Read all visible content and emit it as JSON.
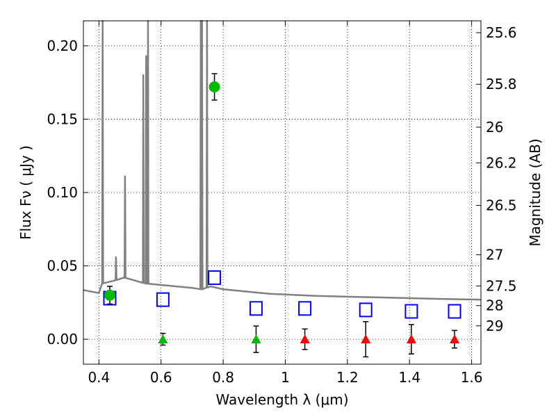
{
  "chart_data": {
    "type": "scatter",
    "xlabel": "Wavelength  λ (μm)",
    "ylabel": "Flux  Fν  ( μJy )",
    "ylabel_right": "Magnitude (AB)",
    "xlim": [
      0.35,
      1.63
    ],
    "ylim": [
      -0.017,
      0.217
    ],
    "grid": true,
    "x_ticks": [
      0.4,
      0.6,
      0.8,
      1.0,
      1.2,
      1.4,
      1.6
    ],
    "x_tick_labels": [
      "0.4",
      "0.6",
      "0.8",
      "1",
      "1.2",
      "1.4",
      "1.6"
    ],
    "y_ticks": [
      0.0,
      0.05,
      0.1,
      0.15,
      0.2
    ],
    "y_tick_labels": [
      "0.00",
      "0.05",
      "0.10",
      "0.15",
      "0.20"
    ],
    "mag_ticks": [
      25.6,
      25.8,
      26,
      26.2,
      26.5,
      27,
      27.5,
      28,
      29
    ],
    "mag_tick_labels": [
      "25.6",
      "25.8",
      "26",
      "26.2",
      "26.5",
      "27",
      "27.5",
      "28",
      "29"
    ],
    "model_spectrum": {
      "color": "#808080",
      "continuum": [
        [
          0.35,
          0.0335
        ],
        [
          0.4,
          0.0315
        ],
        [
          0.41,
          0.038
        ],
        [
          0.45,
          0.04
        ],
        [
          0.48,
          0.042
        ],
        [
          0.5,
          0.041
        ],
        [
          0.55,
          0.038
        ],
        [
          0.6,
          0.037
        ],
        [
          0.65,
          0.036
        ],
        [
          0.7,
          0.035
        ],
        [
          0.73,
          0.034
        ],
        [
          0.76,
          0.036
        ],
        [
          0.8,
          0.034
        ],
        [
          0.85,
          0.033
        ],
        [
          0.9,
          0.032
        ],
        [
          0.95,
          0.031
        ],
        [
          1.0,
          0.0305
        ],
        [
          1.1,
          0.0295
        ],
        [
          1.2,
          0.029
        ],
        [
          1.3,
          0.0285
        ],
        [
          1.4,
          0.028
        ],
        [
          1.5,
          0.0275
        ],
        [
          1.63,
          0.027
        ]
      ],
      "emission_lines": [
        [
          0.412,
          0.22
        ],
        [
          0.455,
          0.056
        ],
        [
          0.484,
          0.111
        ],
        [
          0.543,
          0.18
        ],
        [
          0.552,
          0.193
        ],
        [
          0.558,
          0.22
        ],
        [
          0.728,
          0.22
        ],
        [
          0.732,
          0.22
        ],
        [
          0.748,
          0.22
        ]
      ]
    },
    "observed_detections": {
      "color": "#00bb00",
      "points": [
        {
          "x": 0.435,
          "y": 0.03,
          "err": 0.006
        },
        {
          "x": 0.772,
          "y": 0.172,
          "err": 0.009
        }
      ]
    },
    "model_photometry": {
      "color": "#0000ff",
      "points": [
        {
          "x": 0.435,
          "y": 0.028
        },
        {
          "x": 0.606,
          "y": 0.027
        },
        {
          "x": 0.772,
          "y": 0.042
        },
        {
          "x": 0.906,
          "y": 0.021
        },
        {
          "x": 1.063,
          "y": 0.021
        },
        {
          "x": 1.259,
          "y": 0.02
        },
        {
          "x": 1.406,
          "y": 0.019
        },
        {
          "x": 1.545,
          "y": 0.019
        }
      ]
    },
    "upper_limits_green": {
      "color": "#00bb00",
      "points": [
        {
          "x": 0.606,
          "y": 0.0,
          "err": 0.004
        },
        {
          "x": 0.906,
          "y": 0.0,
          "err": 0.009
        }
      ]
    },
    "upper_limits_red": {
      "color": "#ff0000",
      "points": [
        {
          "x": 1.063,
          "y": 0.0,
          "err": 0.007
        },
        {
          "x": 1.259,
          "y": 0.0,
          "err": 0.012
        },
        {
          "x": 1.406,
          "y": 0.0,
          "err": 0.01
        },
        {
          "x": 1.545,
          "y": 0.0,
          "err": 0.006
        }
      ]
    }
  }
}
